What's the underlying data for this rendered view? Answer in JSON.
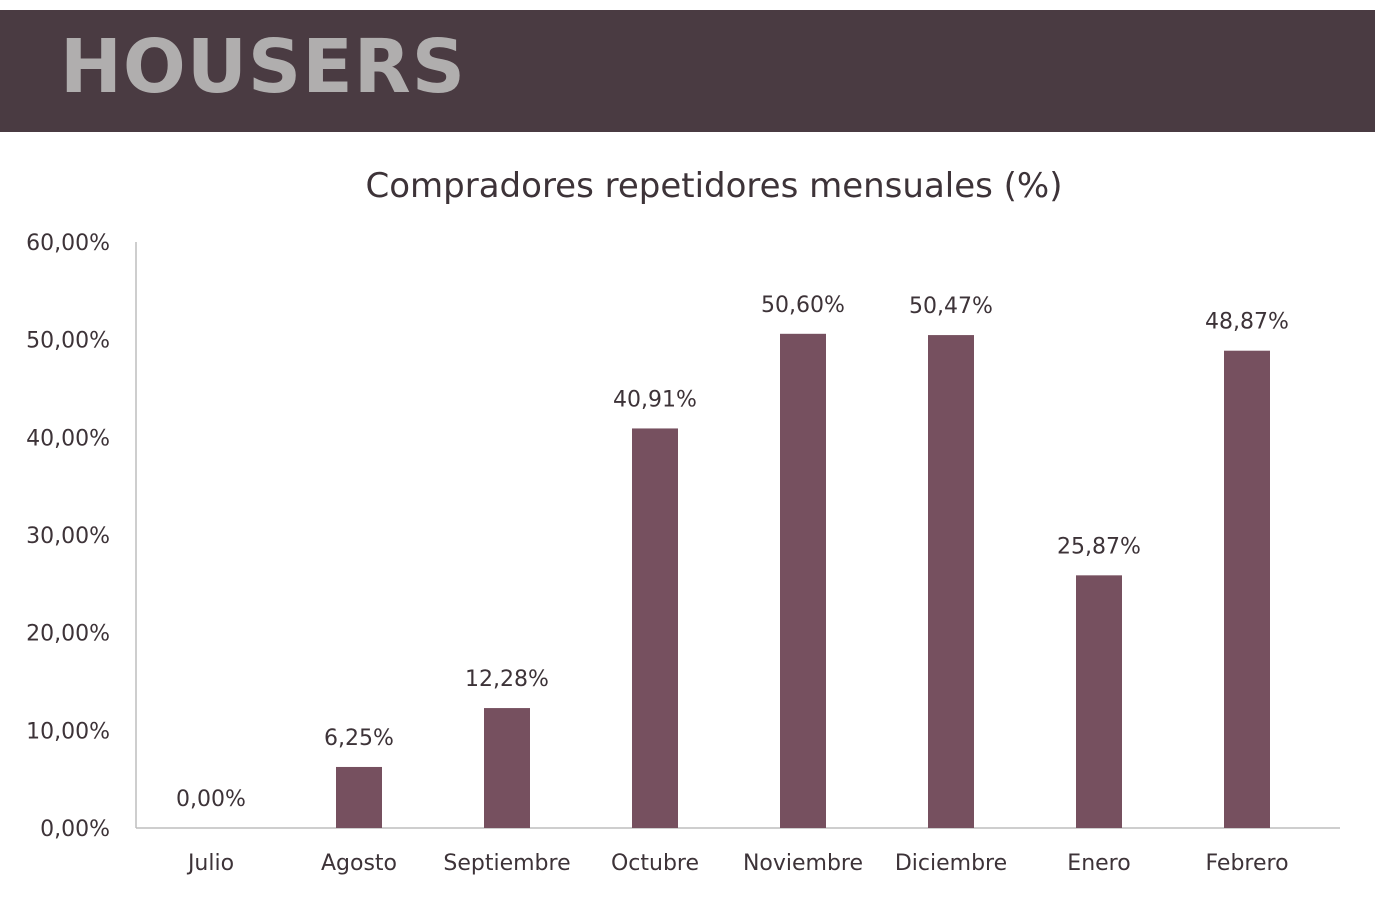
{
  "brand": {
    "logo_text": "HOUSERS",
    "header_color": "#4a3b42",
    "logo_color": "#b0aeae"
  },
  "chart_data": {
    "type": "bar",
    "title": "Compradores repetidores mensuales (%)",
    "categories": [
      "Julio",
      "Agosto",
      "Septiembre",
      "Octubre",
      "Noviembre",
      "Diciembre",
      "Enero",
      "Febrero"
    ],
    "values": [
      0.0,
      6.25,
      12.28,
      40.91,
      50.6,
      50.47,
      25.87,
      48.87
    ],
    "value_labels": [
      "0,00%",
      "6,25%",
      "12,28%",
      "40,91%",
      "50,60%",
      "50,47%",
      "25,87%",
      "48,87%"
    ],
    "y_ticks": [
      0,
      10,
      20,
      30,
      40,
      50,
      60
    ],
    "y_tick_labels": [
      "0,00%",
      "10,00%",
      "20,00%",
      "30,00%",
      "40,00%",
      "50,00%",
      "60,00%"
    ],
    "ylim": [
      0,
      60
    ],
    "grid": false,
    "legend": "none",
    "bar_color": "#76505f",
    "text_color": "#3d3338"
  }
}
